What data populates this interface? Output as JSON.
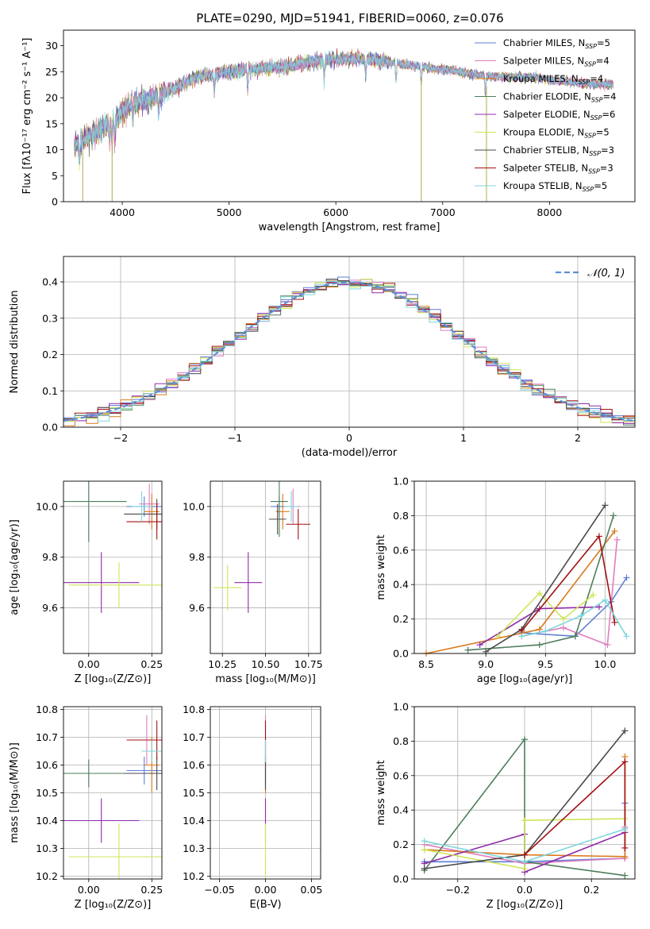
{
  "figure": {
    "title": "PLATE=0290, MJD=51941, FIBERID=0060, z=0.076"
  },
  "colors": {
    "Chabrier MILES": "#5b7fd6",
    "Salpeter MILES": "#e07dc0",
    "Kroupa MILES": "#d97a1c",
    "Chabrier ELODIE": "#4e7d5a",
    "Salpeter ELODIE": "#8f2aa8",
    "Kroupa ELODIE": "#cfe55a",
    "Chabrier STELIB": "#4a4a4a",
    "Salpeter STELIB": "#a31010",
    "Kroupa STELIB": "#7fd6dd"
  },
  "chart_data": [
    {
      "id": "spectrum",
      "type": "line",
      "xlabel": "wavelength [Angstrom, rest frame]",
      "ylabel": "Flux [fλ10⁻¹⁷ erg cm⁻² s⁻¹ A⁻¹]",
      "xlim": [
        3450,
        8800
      ],
      "ylim": [
        0,
        33
      ],
      "xticks": [
        "4000",
        "5000",
        "6000",
        "7000",
        "8000"
      ],
      "yticks": [
        "0",
        "5",
        "10",
        "15",
        "20",
        "25",
        "30"
      ],
      "legend_position": "upper-right",
      "legend": [
        {
          "label": "Chabrier MILES, N",
          "sub": "SSP",
          "tail": "=5"
        },
        {
          "label": "Salpeter MILES, N",
          "sub": "SSP",
          "tail": "=4"
        },
        {
          "label": "Kroupa MILES, N",
          "sub": "SSP",
          "tail": "=4"
        },
        {
          "label": "Chabrier ELODIE, N",
          "sub": "SSP",
          "tail": "=4"
        },
        {
          "label": "Salpeter ELODIE, N",
          "sub": "SSP",
          "tail": "=6"
        },
        {
          "label": "Kroupa ELODIE, N",
          "sub": "SSP",
          "tail": "=5"
        },
        {
          "label": "Chabrier STELIB, N",
          "sub": "SSP",
          "tail": "=3"
        },
        {
          "label": "Salpeter STELIB, N",
          "sub": "SSP",
          "tail": "=3"
        },
        {
          "label": "Kroupa STELIB, N",
          "sub": "SSP",
          "tail": "=5"
        }
      ],
      "continuum": [
        [
          3550,
          11
        ],
        [
          3650,
          12
        ],
        [
          3800,
          14
        ],
        [
          3950,
          16
        ],
        [
          4000,
          17.5
        ],
        [
          4100,
          19
        ],
        [
          4300,
          20
        ],
        [
          4500,
          22
        ],
        [
          4700,
          24
        ],
        [
          5000,
          25
        ],
        [
          5200,
          25.5
        ],
        [
          5500,
          26
        ],
        [
          5800,
          27
        ],
        [
          6000,
          27.5
        ],
        [
          6300,
          27.5
        ],
        [
          6600,
          26.5
        ],
        [
          6800,
          26
        ],
        [
          7000,
          25.5
        ],
        [
          7300,
          24.5
        ],
        [
          7500,
          24
        ],
        [
          7800,
          24
        ],
        [
          8000,
          23.5
        ],
        [
          8200,
          23
        ],
        [
          8500,
          22.5
        ],
        [
          8600,
          22.5
        ]
      ],
      "line_wavelengths": [
        3600,
        3880,
        3904,
        3930,
        4100,
        4340,
        4861,
        5175,
        5890,
        6280,
        6563,
        6800,
        7400
      ],
      "spikes": [
        [
          3630,
          0
        ],
        [
          3905,
          0
        ],
        [
          6800,
          0
        ],
        [
          7410,
          0
        ]
      ]
    },
    {
      "id": "residuals",
      "type": "histogram",
      "xlabel": "(data-model)/error",
      "ylabel": "Normed distribution",
      "xlim": [
        -2.5,
        2.5
      ],
      "ylim": [
        0,
        0.47
      ],
      "xticks": [
        "−2",
        "−1",
        "0",
        "1",
        "2"
      ],
      "yticks": [
        "0.0",
        "0.1",
        "0.2",
        "0.3",
        "0.4"
      ],
      "bin_width": 0.1,
      "bin_start": -2.5,
      "grid": true,
      "legend_position": "upper-right",
      "legend": [
        {
          "label": "𝒩(0, 1)",
          "style": "dashed"
        }
      ]
    },
    {
      "id": "age-vs-Z",
      "type": "errorbar",
      "xlabel": "Z [log₁₀(Z/Z⊙)]",
      "ylabel": "age  [log₁₀(age/yr)]",
      "xlim": [
        -0.1,
        0.29
      ],
      "ylim": [
        9.42,
        10.1
      ],
      "xticks": [
        "0.00",
        "0.25"
      ],
      "yticks": [
        "9.6",
        "9.8",
        "10.0"
      ],
      "grid": true,
      "points": [
        {
          "model": "Chabrier MILES",
          "x": 0.22,
          "xerr": 0.07,
          "y": 10.0,
          "yerr": 0.04
        },
        {
          "model": "Salpeter MILES",
          "x": 0.24,
          "xerr": 0.04,
          "y": 10.01,
          "yerr": 0.08
        },
        {
          "model": "Kroupa MILES",
          "x": 0.25,
          "xerr": 0.03,
          "y": 9.98,
          "yerr": 0.07
        },
        {
          "model": "Chabrier ELODIE",
          "x": 0.0,
          "xerr": 0.15,
          "y": 10.02,
          "yerr": 0.16
        },
        {
          "model": "Salpeter ELODIE",
          "x": 0.05,
          "xerr": 0.15,
          "y": 9.7,
          "yerr": 0.12
        },
        {
          "model": "Kroupa ELODIE",
          "x": 0.12,
          "xerr": 0.2,
          "y": 9.69,
          "yerr": 0.09
        },
        {
          "model": "Chabrier STELIB",
          "x": 0.27,
          "xerr": 0.13,
          "y": 9.97,
          "yerr": 0.06
        },
        {
          "model": "Salpeter STELIB",
          "x": 0.27,
          "xerr": 0.12,
          "y": 9.94,
          "yerr": 0.07
        },
        {
          "model": "Kroupa STELIB",
          "x": 0.21,
          "xerr": 0.04,
          "y": 10.0,
          "yerr": 0.06
        }
      ]
    },
    {
      "id": "age-vs-mass",
      "type": "errorbar",
      "xlabel": "mass [log₁₀(M/M⊙)]",
      "ylabel": "",
      "xlim": [
        10.18,
        10.82
      ],
      "ylim": [
        9.42,
        10.1
      ],
      "xticks": [
        "10.25",
        "10.50",
        "10.75"
      ],
      "yticks": [
        "9.6",
        "9.8",
        "10.0"
      ],
      "grid": true,
      "points": [
        {
          "model": "Chabrier MILES",
          "x": 10.58,
          "xerr": 0.05,
          "y": 10.0,
          "yerr": 0.04
        },
        {
          "model": "Salpeter MILES",
          "x": 10.66,
          "xerr": 0.04,
          "y": 10.0,
          "yerr": 0.07
        },
        {
          "model": "Kroupa MILES",
          "x": 10.6,
          "xerr": 0.04,
          "y": 9.98,
          "yerr": 0.07
        },
        {
          "model": "Chabrier ELODIE",
          "x": 10.58,
          "xerr": 0.05,
          "y": 10.02,
          "yerr": 0.14
        },
        {
          "model": "Salpeter ELODIE",
          "x": 10.4,
          "xerr": 0.08,
          "y": 9.7,
          "yerr": 0.12
        },
        {
          "model": "Kroupa ELODIE",
          "x": 10.28,
          "xerr": 0.08,
          "y": 9.68,
          "yerr": 0.09
        },
        {
          "model": "Chabrier STELIB",
          "x": 10.57,
          "xerr": 0.05,
          "y": 9.95,
          "yerr": 0.06
        },
        {
          "model": "Salpeter STELIB",
          "x": 10.69,
          "xerr": 0.07,
          "y": 9.93,
          "yerr": 0.06
        },
        {
          "model": "Kroupa STELIB",
          "x": 10.65,
          "xerr": 0.04,
          "y": 10.0,
          "yerr": 0.06
        }
      ]
    },
    {
      "id": "mass-weight-vs-age",
      "type": "line",
      "xlabel": "age  [log₁₀(age/yr)]",
      "ylabel": "mass weight",
      "xlim": [
        8.4,
        10.25
      ],
      "ylim": [
        0.0,
        1.0
      ],
      "xticks": [
        "8.5",
        "9.0",
        "9.5",
        "10.0"
      ],
      "yticks": [
        "0.0",
        "0.2",
        "0.4",
        "0.6",
        "0.8",
        "1.0"
      ],
      "grid": true,
      "series": [
        {
          "model": "Chabrier MILES",
          "x": [
            9.3,
            9.75,
            10.05,
            10.18
          ],
          "y": [
            0.12,
            0.1,
            0.3,
            0.44
          ]
        },
        {
          "model": "Salpeter MILES",
          "x": [
            9.3,
            9.65,
            10.02,
            10.1
          ],
          "y": [
            0.1,
            0.15,
            0.05,
            0.66
          ]
        },
        {
          "model": "Kroupa MILES",
          "x": [
            8.5,
            9.45,
            10.08
          ],
          "y": [
            0.0,
            0.14,
            0.71
          ]
        },
        {
          "model": "Chabrier ELODIE",
          "x": [
            8.85,
            9.45,
            9.75,
            10.07
          ],
          "y": [
            0.02,
            0.05,
            0.1,
            0.8
          ]
        },
        {
          "model": "Salpeter ELODIE",
          "x": [
            8.95,
            9.45,
            9.95
          ],
          "y": [
            0.05,
            0.26,
            0.27
          ]
        },
        {
          "model": "Kroupa ELODIE",
          "x": [
            9.1,
            9.45,
            9.65,
            9.9
          ],
          "y": [
            0.1,
            0.35,
            0.2,
            0.34
          ]
        },
        {
          "model": "Chabrier STELIB",
          "x": [
            9.0,
            9.3,
            10.0
          ],
          "y": [
            0.01,
            0.14,
            0.86
          ]
        },
        {
          "model": "Salpeter STELIB",
          "x": [
            9.3,
            9.95,
            10.08
          ],
          "y": [
            0.13,
            0.68,
            0.18
          ]
        },
        {
          "model": "Kroupa STELIB",
          "x": [
            9.3,
            9.5,
            9.8,
            10.0,
            10.18
          ],
          "y": [
            0.1,
            0.13,
            0.22,
            0.31,
            0.1
          ]
        }
      ]
    },
    {
      "id": "mass-vs-Z",
      "type": "errorbar",
      "xlabel": "Z [log₁₀(Z/Z⊙)]",
      "ylabel": "mass [log₁₀(M/M⊙)]",
      "xlim": [
        -0.1,
        0.29
      ],
      "ylim": [
        10.19,
        10.81
      ],
      "xticks": [
        "0.00",
        "0.25"
      ],
      "yticks": [
        "10.2",
        "10.3",
        "10.4",
        "10.5",
        "10.6",
        "10.7",
        "10.8"
      ],
      "grid": true,
      "points": [
        {
          "model": "Chabrier MILES",
          "x": 0.22,
          "xerr": 0.07,
          "y": 10.58,
          "yerr": 0.05
        },
        {
          "model": "Salpeter MILES",
          "x": 0.23,
          "xerr": 0.04,
          "y": 10.69,
          "yerr": 0.09
        },
        {
          "model": "Kroupa MILES",
          "x": 0.25,
          "xerr": 0.03,
          "y": 10.6,
          "yerr": 0.1
        },
        {
          "model": "Chabrier ELODIE",
          "x": 0.0,
          "xerr": 0.15,
          "y": 10.57,
          "yerr": 0.05
        },
        {
          "model": "Salpeter ELODIE",
          "x": 0.05,
          "xerr": 0.15,
          "y": 10.4,
          "yerr": 0.08
        },
        {
          "model": "Kroupa ELODIE",
          "x": 0.12,
          "xerr": 0.2,
          "y": 10.27,
          "yerr": 0.12
        },
        {
          "model": "Chabrier STELIB",
          "x": 0.27,
          "xerr": 0.13,
          "y": 10.57,
          "yerr": 0.06
        },
        {
          "model": "Salpeter STELIB",
          "x": 0.27,
          "xerr": 0.12,
          "y": 10.69,
          "yerr": 0.07
        },
        {
          "model": "Kroupa STELIB",
          "x": 0.25,
          "xerr": 0.04,
          "y": 10.65,
          "yerr": 0.04
        }
      ]
    },
    {
      "id": "mass-vs-ebv",
      "type": "errorbar",
      "xlabel": "E(B-V)",
      "ylabel": "",
      "xlim": [
        -0.06,
        0.06
      ],
      "ylim": [
        10.19,
        10.81
      ],
      "xticks": [
        "−0.05",
        "0.00",
        "0.05"
      ],
      "yticks": [
        "10.2",
        "10.3",
        "10.4",
        "10.5",
        "10.6",
        "10.7",
        "10.8"
      ],
      "grid": true,
      "points": [
        {
          "model": "Chabrier MILES",
          "x": 0.0,
          "xerr": 0.0,
          "y": 10.58,
          "yerr": 0.05
        },
        {
          "model": "Salpeter MILES",
          "x": 0.0,
          "xerr": 0.0,
          "y": 10.69,
          "yerr": 0.09
        },
        {
          "model": "Kroupa MILES",
          "x": 0.0,
          "xerr": 0.0,
          "y": 10.6,
          "yerr": 0.1
        },
        {
          "model": "Chabrier ELODIE",
          "x": 0.0,
          "xerr": 0.0,
          "y": 10.57,
          "yerr": 0.05
        },
        {
          "model": "Salpeter ELODIE",
          "x": 0.0,
          "xerr": 0.0,
          "y": 10.4,
          "yerr": 0.08
        },
        {
          "model": "Kroupa ELODIE",
          "x": 0.0,
          "xerr": 0.0,
          "y": 10.27,
          "yerr": 0.12
        },
        {
          "model": "Chabrier STELIB",
          "x": 0.0,
          "xerr": 0.0,
          "y": 10.57,
          "yerr": 0.06
        },
        {
          "model": "Salpeter STELIB",
          "x": 0.0,
          "xerr": 0.0,
          "y": 10.69,
          "yerr": 0.07
        },
        {
          "model": "Kroupa STELIB",
          "x": 0.0,
          "xerr": 0.0,
          "y": 10.65,
          "yerr": 0.04
        }
      ]
    },
    {
      "id": "mass-weight-vs-Z",
      "type": "line",
      "xlabel": "Z [log₁₀(Z/Z⊙)]",
      "ylabel": "mass weight",
      "xlim": [
        -0.33,
        0.33
      ],
      "ylim": [
        0.0,
        1.0
      ],
      "xticks": [
        "−0.2",
        "0.0",
        "0.2"
      ],
      "yticks": [
        "0.0",
        "0.2",
        "0.4",
        "0.6",
        "0.8",
        "1.0"
      ],
      "grid": true,
      "series": [
        {
          "model": "Chabrier MILES",
          "x": [
            -0.3,
            0.0,
            0.3,
            0.3
          ],
          "y": [
            0.1,
            0.1,
            0.12,
            0.44
          ]
        },
        {
          "model": "Salpeter MILES",
          "x": [
            -0.3,
            0.0,
            0.3,
            0.3
          ],
          "y": [
            0.2,
            0.09,
            0.12,
            0.3
          ]
        },
        {
          "model": "Kroupa MILES",
          "x": [
            -0.3,
            0.0,
            0.3,
            0.3
          ],
          "y": [
            0.17,
            0.14,
            0.13,
            0.71
          ]
        },
        {
          "model": "Chabrier ELODIE",
          "x": [
            -0.3,
            0.0,
            0.0,
            0.3
          ],
          "y": [
            0.05,
            0.81,
            0.1,
            0.02
          ]
        },
        {
          "model": "Salpeter ELODIE",
          "x": [
            -0.3,
            0.0,
            0.0,
            0.3
          ],
          "y": [
            0.09,
            0.26,
            0.04,
            0.27
          ]
        },
        {
          "model": "Kroupa ELODIE",
          "x": [
            -0.3,
            0.0,
            0.0,
            0.3
          ],
          "y": [
            0.17,
            0.06,
            0.34,
            0.35
          ]
        },
        {
          "model": "Chabrier STELIB",
          "x": [
            -0.3,
            0.0,
            0.3
          ],
          "y": [
            0.06,
            0.14,
            0.86
          ]
        },
        {
          "model": "Salpeter STELIB",
          "x": [
            0.0,
            0.3,
            0.3
          ],
          "y": [
            0.14,
            0.68,
            0.18
          ]
        },
        {
          "model": "Kroupa STELIB",
          "x": [
            -0.3,
            0.0,
            0.3
          ],
          "y": [
            0.22,
            0.1,
            0.29
          ]
        }
      ]
    }
  ]
}
